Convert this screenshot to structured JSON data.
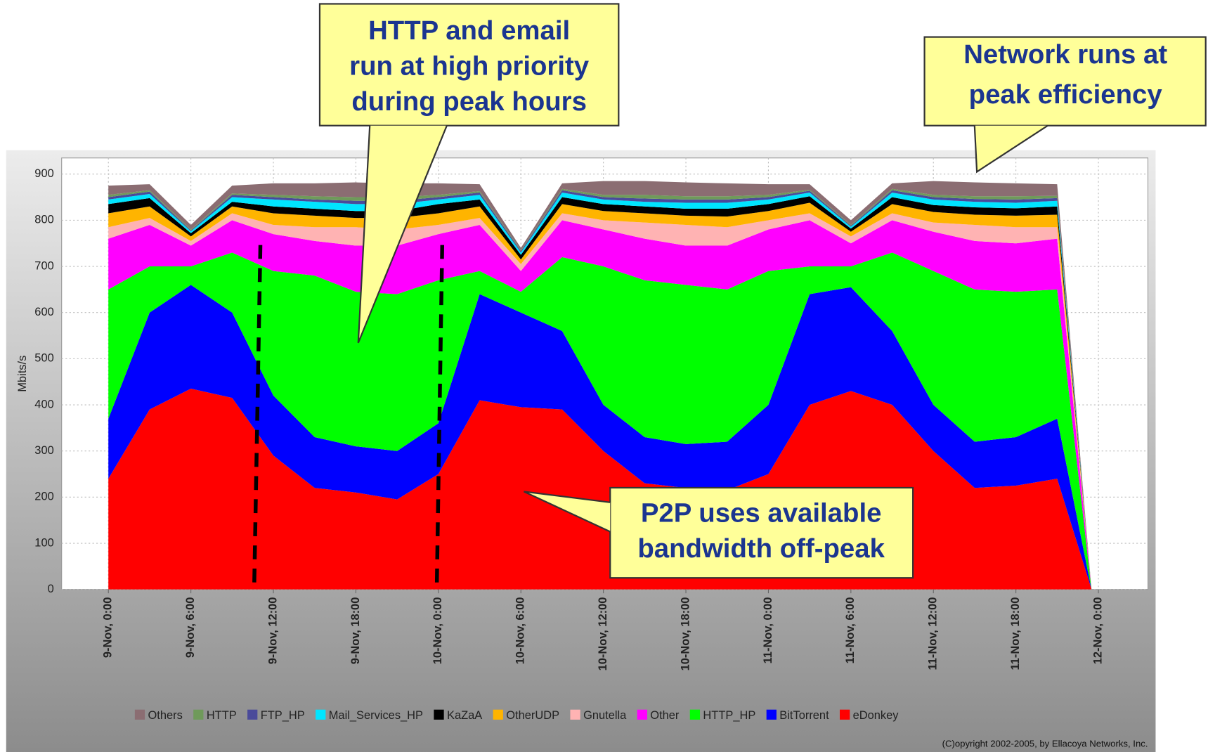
{
  "chart_data": {
    "type": "area",
    "stacked": true,
    "y_label": "Mbits/s",
    "copyright": "(C)opyright 2002-2005, by Ellacoya Networks, Inc.",
    "annotations": [
      [
        "HTTP and email",
        "run at high priority",
        "during peak hours"
      ],
      [
        "Network runs at",
        "peak efficiency"
      ],
      [
        "P2P uses available",
        "bandwidth off-peak"
      ]
    ],
    "x": [
      0,
      3,
      6,
      9,
      12,
      15,
      18,
      21,
      24,
      27,
      30,
      33,
      36,
      39,
      42,
      45,
      48,
      51,
      54,
      57,
      60,
      63,
      66,
      69,
      71.5
    ],
    "xlim": [
      -3.4,
      75.6
    ],
    "xticks": [
      {
        "value": 0,
        "label": "9-Nov, 0:00"
      },
      {
        "value": 6,
        "label": "9-Nov, 6:00"
      },
      {
        "value": 12,
        "label": "9-Nov, 12:00"
      },
      {
        "value": 18,
        "label": "9-Nov, 18:00"
      },
      {
        "value": 24,
        "label": "10-Nov, 0:00"
      },
      {
        "value": 30,
        "label": "10-Nov, 6:00"
      },
      {
        "value": 36,
        "label": "10-Nov, 12:00"
      },
      {
        "value": 42,
        "label": "10-Nov, 18:00"
      },
      {
        "value": 48,
        "label": "11-Nov, 0:00"
      },
      {
        "value": 54,
        "label": "11-Nov, 6:00"
      },
      {
        "value": 60,
        "label": "11-Nov, 12:00"
      },
      {
        "value": 66,
        "label": "11-Nov, 18:00"
      },
      {
        "value": 72,
        "label": "12-Nov, 0:00"
      }
    ],
    "ylim": [
      0,
      935
    ],
    "yticks": [
      0,
      100,
      200,
      300,
      400,
      500,
      600,
      700,
      800,
      900
    ],
    "grid": true,
    "series": [
      {
        "name": "eDonkey",
        "color": "#ff0000",
        "values": [
          240,
          390,
          435,
          415,
          290,
          220,
          210,
          195,
          250,
          410,
          395,
          390,
          300,
          230,
          220,
          215,
          250,
          400,
          430,
          400,
          300,
          220,
          225,
          240,
          0
        ]
      },
      {
        "name": "BitTorrent",
        "color": "#0000ff",
        "values": [
          130,
          210,
          225,
          185,
          130,
          110,
          100,
          105,
          110,
          230,
          205,
          170,
          100,
          100,
          95,
          105,
          150,
          240,
          225,
          160,
          100,
          100,
          105,
          130,
          0
        ]
      },
      {
        "name": "HTTP_HP",
        "color": "#00ff00",
        "values": [
          280,
          100,
          40,
          130,
          270,
          350,
          335,
          340,
          310,
          50,
          45,
          160,
          300,
          340,
          345,
          330,
          290,
          60,
          45,
          170,
          290,
          330,
          315,
          280,
          0
        ]
      },
      {
        "name": "Other",
        "color": "#ff00ff",
        "values": [
          110,
          90,
          45,
          70,
          80,
          75,
          100,
          105,
          100,
          100,
          45,
          80,
          80,
          90,
          85,
          95,
          90,
          100,
          50,
          70,
          85,
          105,
          105,
          110,
          0
        ]
      },
      {
        "name": "Gnutella",
        "color": "#ffb3b3",
        "values": [
          25,
          15,
          10,
          15,
          20,
          30,
          40,
          35,
          20,
          15,
          15,
          15,
          20,
          35,
          45,
          40,
          20,
          15,
          15,
          15,
          20,
          35,
          35,
          25,
          0
        ]
      },
      {
        "name": "OtherUDP",
        "color": "#ffb400",
        "values": [
          30,
          25,
          10,
          15,
          25,
          25,
          20,
          25,
          25,
          25,
          10,
          20,
          20,
          20,
          20,
          23,
          20,
          23,
          10,
          20,
          23,
          22,
          25,
          27,
          0
        ]
      },
      {
        "name": "KaZaA",
        "color": "#000000",
        "values": [
          20,
          18,
          7,
          10,
          15,
          15,
          15,
          15,
          20,
          15,
          10,
          15,
          15,
          15,
          15,
          17,
          15,
          14,
          7,
          15,
          15,
          16,
          16,
          18,
          0
        ]
      },
      {
        "name": "Mail_Services_HP",
        "color": "#00e5ff",
        "values": [
          10,
          9,
          4,
          10,
          15,
          15,
          15,
          15,
          10,
          10,
          5,
          10,
          10,
          10,
          13,
          13,
          10,
          8,
          4,
          10,
          12,
          12,
          12,
          12,
          0
        ]
      },
      {
        "name": "FTP_HP",
        "color": "#4a4a9a",
        "values": [
          5,
          5,
          2,
          5,
          5,
          5,
          7,
          7,
          5,
          5,
          3,
          5,
          5,
          7,
          7,
          7,
          5,
          4,
          2,
          5,
          5,
          6,
          7,
          6,
          0
        ]
      },
      {
        "name": "HTTP",
        "color": "#6f9a5a",
        "values": [
          5,
          3,
          2,
          3,
          5,
          7,
          8,
          8,
          5,
          3,
          2,
          3,
          5,
          8,
          7,
          7,
          5,
          2,
          2,
          3,
          5,
          6,
          7,
          5,
          0
        ]
      },
      {
        "name": "Others",
        "color": "#8b6d72",
        "values": [
          20,
          13,
          10,
          17,
          25,
          28,
          32,
          30,
          25,
          15,
          5,
          12,
          30,
          30,
          30,
          28,
          23,
          12,
          10,
          12,
          30,
          30,
          28,
          25,
          0
        ]
      }
    ]
  }
}
